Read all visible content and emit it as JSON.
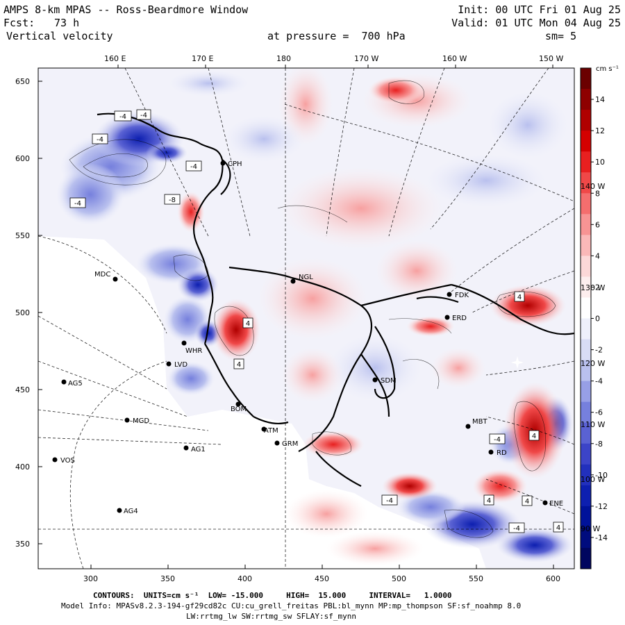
{
  "header": {
    "title": "AMPS 8-km MPAS -- Ross-Beardmore Window",
    "fcst_label": "Fcst:",
    "fcst_value": "73 h",
    "field": "Vertical velocity",
    "init": "Init: 00 UTC Fri 01 Aug 25",
    "valid": "Valid: 01 UTC Mon 04 Aug 25",
    "pressure": "at pressure =  700 hPa",
    "smooth": "sm= 5"
  },
  "axes": {
    "top_labels": [
      "160 E",
      "170 E",
      "180",
      "170 W",
      "160 W",
      "150 W"
    ],
    "left_labels": [
      "650",
      "600",
      "550",
      "500",
      "450",
      "400",
      "350"
    ],
    "bottom_labels": [
      "300",
      "350",
      "400",
      "450",
      "500",
      "550",
      "600"
    ],
    "right_inset_labels": [
      "140 W",
      "130 W",
      "120 W",
      "110 W",
      "100 W",
      "90 W"
    ]
  },
  "colorbar": {
    "unit": "cm s⁻¹",
    "ticks": [
      "14",
      "12",
      "10",
      "8",
      "6",
      "4",
      "2",
      "0",
      "-2",
      "-4",
      "-6",
      "-8",
      "-10",
      "-12",
      "-14"
    ],
    "colors_top_to_bottom": [
      "#6b0000",
      "#8e0000",
      "#b00000",
      "#d40000",
      "#e82020",
      "#f04848",
      "#f46e6e",
      "#f79494",
      "#fab8b8",
      "#fcd8d8",
      "#fdeeee",
      "#ffffff",
      "#eef0fb",
      "#d8dcf5",
      "#b9c0ee",
      "#979fe6",
      "#7680dd",
      "#5a62d3",
      "#3c44c8",
      "#2230bd",
      "#0d1fb0",
      "#00129a",
      "#000c7e",
      "#00065f"
    ]
  },
  "stations": [
    {
      "name": "CPH"
    },
    {
      "name": "MDC"
    },
    {
      "name": "NGL"
    },
    {
      "name": "FDK"
    },
    {
      "name": "ERD"
    },
    {
      "name": "WHR"
    },
    {
      "name": "LVD"
    },
    {
      "name": "AG5"
    },
    {
      "name": "SDM"
    },
    {
      "name": "MGD"
    },
    {
      "name": "BOM"
    },
    {
      "name": "MBT"
    },
    {
      "name": "ATM"
    },
    {
      "name": "GRM"
    },
    {
      "name": "AG1"
    },
    {
      "name": "VOS"
    },
    {
      "name": "AG4"
    },
    {
      "name": "ENE"
    },
    {
      "name": "RD"
    }
  ],
  "contour_labels": [
    "-4",
    "-4",
    "-4",
    "-4",
    "-4",
    "4",
    "4",
    "4",
    "-8",
    "-4",
    "4",
    "4",
    "-4",
    "-4",
    "4",
    "4"
  ],
  "footer": {
    "contours": "CONTOURS:  UNITS=cm s⁻¹  LOW= -15.000     HIGH=  15.000     INTERVAL=   1.0000",
    "model_info": "Model Info: MPASv8.2.3-194-gf29cd82c CU:cu_grell_freitas PBL:bl_mynn MP:mp_thompson SF:sf_noahmp 8.0",
    "physics": "LW:rrtmg_lw SW:rrtmg_sw SFLAY:sf_mynn"
  }
}
